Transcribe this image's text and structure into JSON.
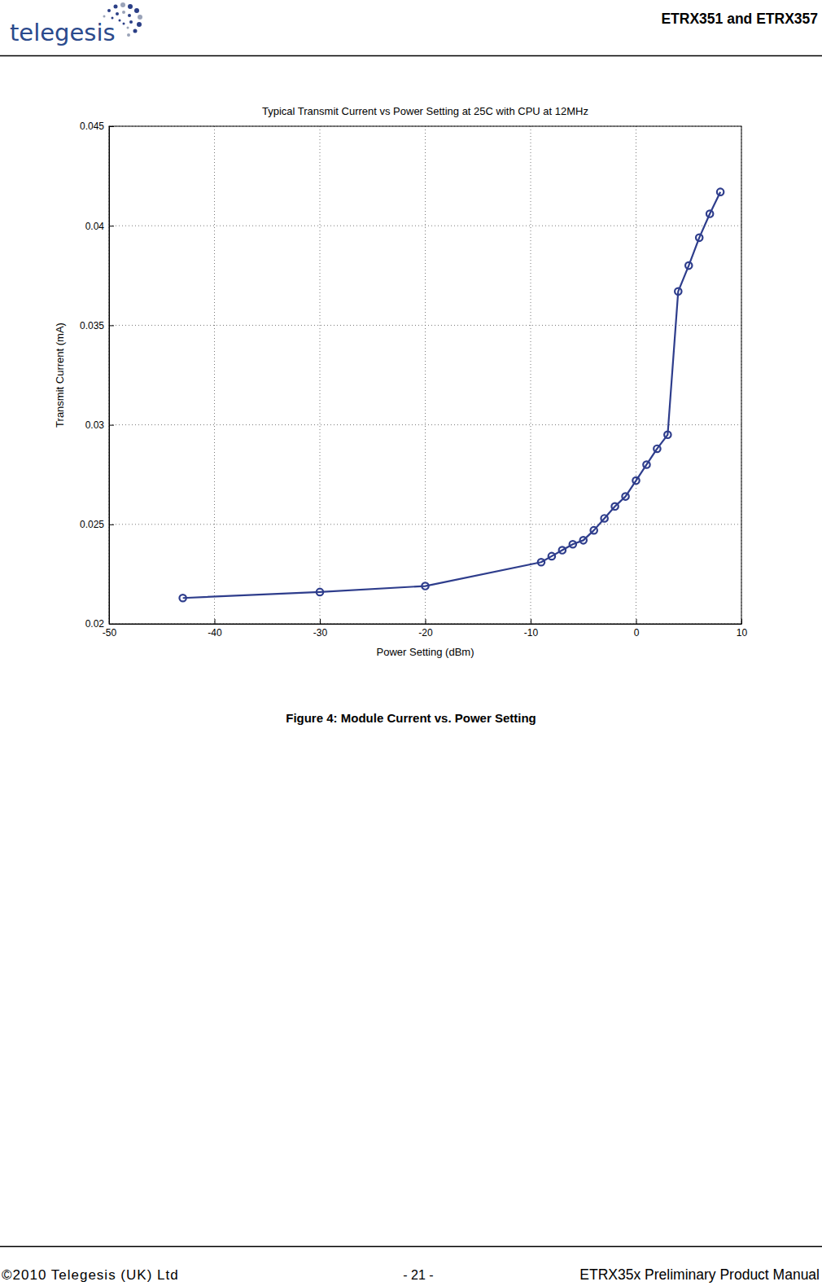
{
  "header": {
    "logo": "telegesis",
    "title": "ETRX351 and ETRX357"
  },
  "chart_data": {
    "type": "line",
    "title": "Typical Transmit Current vs Power Setting at 25C with CPU at 12MHz",
    "x_label": "Power Setting (dBm)",
    "y_label": "Transmit Current (mA)",
    "x": [
      -43,
      -30,
      -20,
      -9,
      -8,
      -7,
      -6,
      -5,
      -4,
      -3,
      -2,
      -1,
      0,
      1,
      2,
      3,
      4,
      5,
      6,
      7,
      8
    ],
    "values": [
      0.0213,
      0.0216,
      0.0219,
      0.0231,
      0.0234,
      0.0237,
      0.024,
      0.0242,
      0.0247,
      0.0253,
      0.0259,
      0.0264,
      0.0272,
      0.028,
      0.0288,
      0.0295,
      0.0367,
      0.038,
      0.0394,
      0.0406,
      0.0417
    ],
    "color": "#2e3d8c",
    "marker": "circle",
    "line_style": "solid",
    "xlim": [
      -50,
      10
    ],
    "xticks": [
      -50,
      -40,
      -30,
      -20,
      -10,
      0,
      10
    ],
    "ylim": [
      0.02,
      0.045
    ],
    "yticks": [
      0.02,
      0.025,
      0.03,
      0.035,
      0.04,
      0.045
    ],
    "grid": true
  },
  "caption": "Figure 4: Module Current vs. Power Setting",
  "footer": {
    "copyright": "©2010 Telegesis (UK) Ltd",
    "page": "- 21 -",
    "document": "ETRX35x Preliminary Product Manual"
  }
}
